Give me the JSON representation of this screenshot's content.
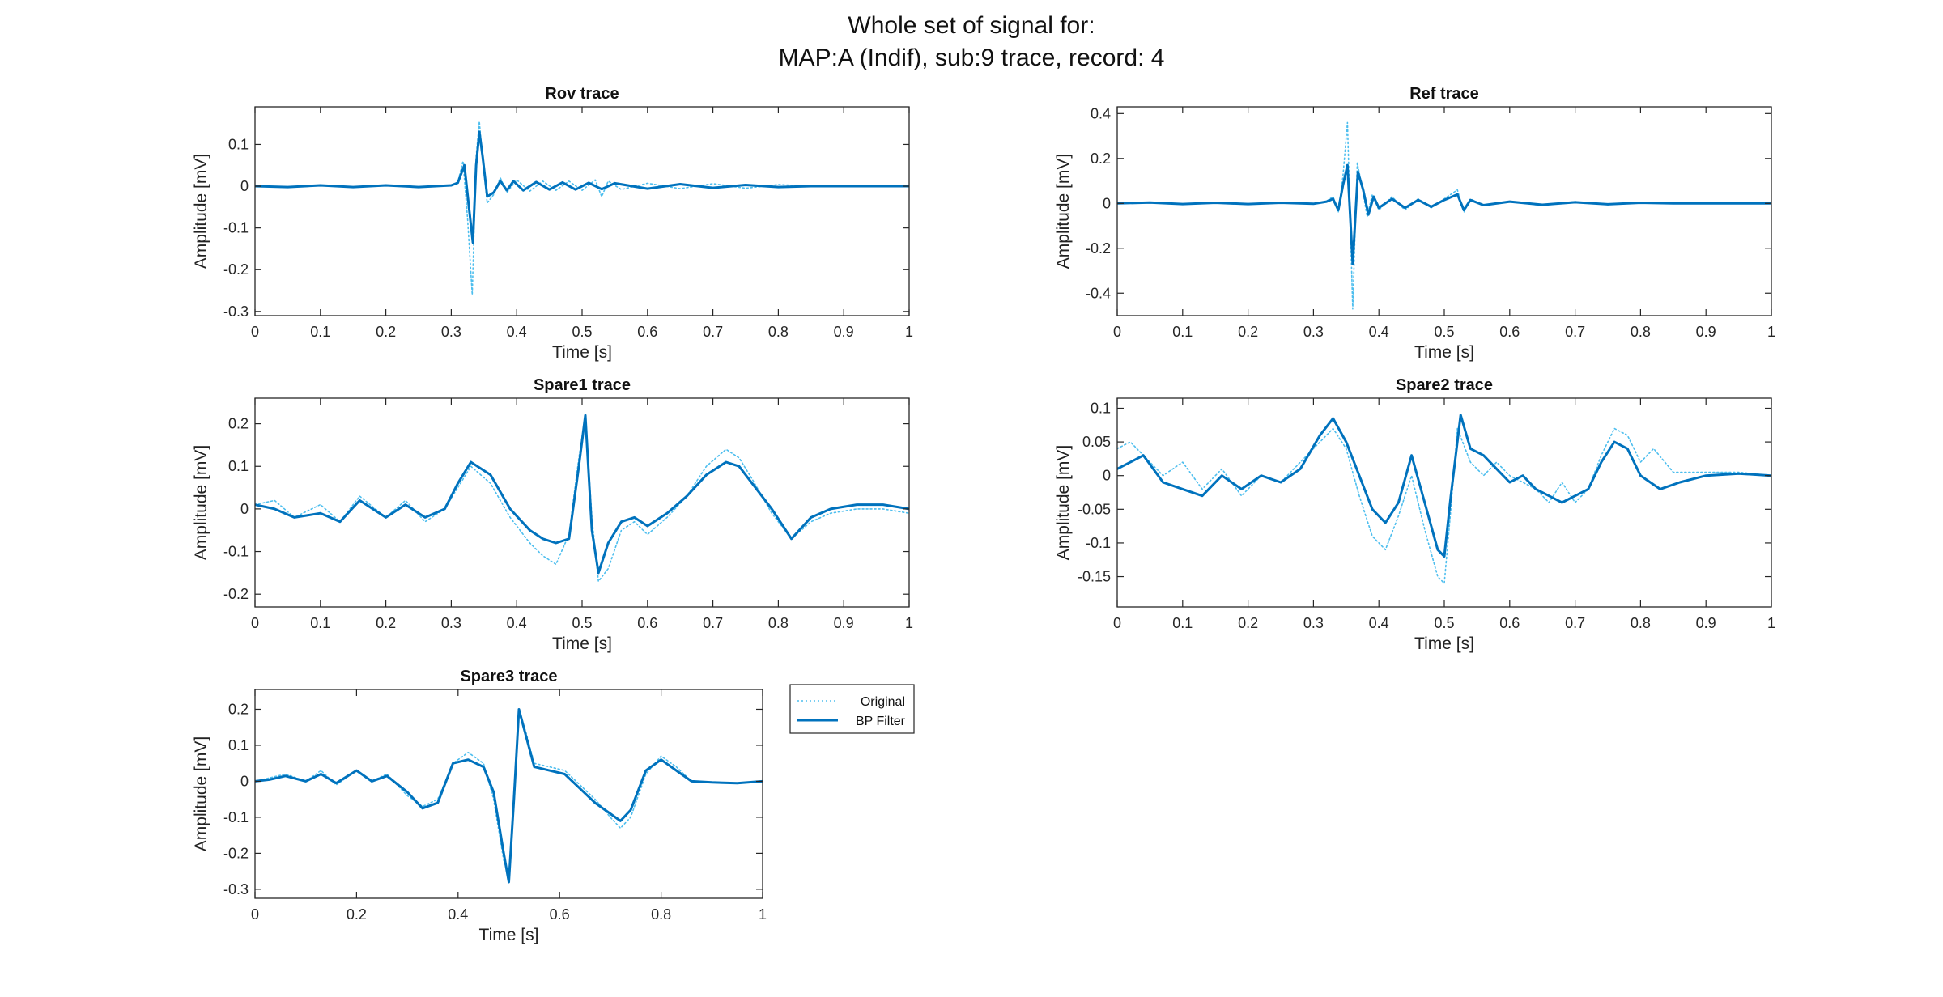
{
  "figure": {
    "title_line1": "Whole set of signal for:",
    "title_line2": "MAP:A (Indif), sub:9 trace, record: 4"
  },
  "colors": {
    "original": "#4DBEEE",
    "bp_filter": "#0072BD",
    "axes": "#262626"
  },
  "legend": {
    "items": [
      {
        "label": "Original",
        "style": "dotted"
      },
      {
        "label": "BP Filter",
        "style": "solid"
      }
    ]
  },
  "chart_data": [
    {
      "type": "line",
      "title": "Rov trace",
      "xlabel": "Time [s]",
      "ylabel": "Amplitude [mV]",
      "xlim": [
        0,
        1
      ],
      "ylim": [
        -0.31,
        0.19
      ],
      "xticks": [
        0,
        0.1,
        0.2,
        0.3,
        0.4,
        0.5,
        0.6,
        0.7,
        0.8,
        0.9,
        1
      ],
      "yticks": [
        -0.3,
        -0.2,
        -0.1,
        0,
        0.1
      ],
      "series": [
        {
          "name": "Original",
          "x": [
            0,
            0.05,
            0.1,
            0.15,
            0.2,
            0.25,
            0.3,
            0.31,
            0.318,
            0.325,
            0.332,
            0.338,
            0.343,
            0.348,
            0.355,
            0.365,
            0.375,
            0.385,
            0.4,
            0.42,
            0.44,
            0.46,
            0.48,
            0.5,
            0.52,
            0.53,
            0.54,
            0.56,
            0.6,
            0.65,
            0.7,
            0.75,
            0.8,
            0.85,
            0.9,
            0.95,
            1.0
          ],
          "y": [
            0,
            -0.003,
            0.002,
            -0.002,
            0.002,
            -0.002,
            0.002,
            0.01,
            0.06,
            -0.08,
            -0.26,
            0.07,
            0.155,
            0.06,
            -0.04,
            -0.02,
            0.02,
            -0.015,
            0.015,
            -0.012,
            0.012,
            -0.01,
            0.012,
            -0.01,
            0.015,
            -0.025,
            0.012,
            -0.008,
            0.007,
            -0.006,
            0.006,
            -0.005,
            0.004,
            0,
            0,
            0,
            0
          ]
        },
        {
          "name": "BP Filter",
          "x": [
            0,
            0.05,
            0.1,
            0.15,
            0.2,
            0.25,
            0.3,
            0.31,
            0.32,
            0.327,
            0.333,
            0.338,
            0.343,
            0.348,
            0.355,
            0.365,
            0.375,
            0.385,
            0.395,
            0.41,
            0.43,
            0.45,
            0.47,
            0.49,
            0.51,
            0.53,
            0.55,
            0.6,
            0.65,
            0.7,
            0.75,
            0.8,
            0.85,
            0.9,
            0.95,
            1.0
          ],
          "y": [
            0,
            -0.002,
            0.002,
            -0.002,
            0.002,
            -0.002,
            0.002,
            0.008,
            0.05,
            -0.05,
            -0.135,
            0.05,
            0.13,
            0.07,
            -0.025,
            -0.015,
            0.012,
            -0.01,
            0.012,
            -0.01,
            0.01,
            -0.008,
            0.009,
            -0.008,
            0.008,
            -0.007,
            0.007,
            -0.006,
            0.005,
            -0.004,
            0.003,
            -0.002,
            0,
            0,
            0,
            0
          ]
        }
      ]
    },
    {
      "type": "line",
      "title": "Ref trace",
      "xlabel": "Time [s]",
      "ylabel": "Amplitude [mV]",
      "xlim": [
        0,
        1
      ],
      "ylim": [
        -0.5,
        0.43
      ],
      "xticks": [
        0,
        0.1,
        0.2,
        0.3,
        0.4,
        0.5,
        0.6,
        0.7,
        0.8,
        0.9,
        1
      ],
      "yticks": [
        -0.4,
        -0.2,
        0,
        0.2,
        0.4
      ],
      "series": [
        {
          "name": "Original",
          "x": [
            0,
            0.05,
            0.1,
            0.15,
            0.2,
            0.25,
            0.3,
            0.32,
            0.33,
            0.338,
            0.345,
            0.352,
            0.36,
            0.367,
            0.374,
            0.382,
            0.39,
            0.4,
            0.42,
            0.44,
            0.46,
            0.48,
            0.5,
            0.52,
            0.53,
            0.54,
            0.56,
            0.6,
            0.65,
            0.7,
            0.75,
            0.8,
            0.85,
            0.9,
            0.95,
            1.0
          ],
          "y": [
            0,
            0.005,
            -0.003,
            0.004,
            -0.003,
            0.003,
            -0.003,
            0.01,
            0.03,
            -0.04,
            0.12,
            0.36,
            -0.47,
            0.18,
            0.08,
            -0.06,
            0.04,
            -0.03,
            0.03,
            -0.03,
            0.02,
            -0.02,
            0.02,
            0.06,
            -0.04,
            0.02,
            -0.01,
            0.01,
            -0.01,
            0.008,
            -0.006,
            0.004,
            0,
            0,
            0,
            0
          ]
        },
        {
          "name": "BP Filter",
          "x": [
            0,
            0.05,
            0.1,
            0.15,
            0.2,
            0.25,
            0.3,
            0.32,
            0.33,
            0.338,
            0.345,
            0.352,
            0.36,
            0.368,
            0.376,
            0.384,
            0.392,
            0.4,
            0.42,
            0.44,
            0.46,
            0.48,
            0.5,
            0.52,
            0.53,
            0.54,
            0.56,
            0.6,
            0.65,
            0.7,
            0.75,
            0.8,
            0.85,
            0.9,
            0.95,
            1.0
          ],
          "y": [
            0,
            0.004,
            -0.003,
            0.003,
            -0.003,
            0.003,
            -0.002,
            0.008,
            0.02,
            -0.03,
            0.08,
            0.17,
            -0.27,
            0.14,
            0.06,
            -0.05,
            0.03,
            -0.02,
            0.02,
            -0.02,
            0.015,
            -0.015,
            0.015,
            0.04,
            -0.03,
            0.015,
            -0.008,
            0.008,
            -0.006,
            0.005,
            -0.004,
            0.003,
            0,
            0,
            0,
            0
          ]
        }
      ]
    },
    {
      "type": "line",
      "title": "Spare1 trace",
      "xlabel": "Time [s]",
      "ylabel": "Amplitude [mV]",
      "xlim": [
        0,
        1
      ],
      "ylim": [
        -0.23,
        0.26
      ],
      "xticks": [
        0,
        0.1,
        0.2,
        0.3,
        0.4,
        0.5,
        0.6,
        0.7,
        0.8,
        0.9,
        1
      ],
      "yticks": [
        -0.2,
        -0.1,
        0,
        0.1,
        0.2
      ],
      "series": [
        {
          "name": "Original",
          "x": [
            0,
            0.03,
            0.06,
            0.1,
            0.13,
            0.16,
            0.2,
            0.23,
            0.26,
            0.29,
            0.31,
            0.33,
            0.36,
            0.39,
            0.42,
            0.44,
            0.46,
            0.48,
            0.495,
            0.505,
            0.515,
            0.525,
            0.54,
            0.56,
            0.58,
            0.6,
            0.63,
            0.66,
            0.69,
            0.72,
            0.74,
            0.76,
            0.79,
            0.82,
            0.85,
            0.88,
            0.92,
            0.96,
            1.0
          ],
          "y": [
            0.01,
            0.02,
            -0.02,
            0.01,
            -0.03,
            0.03,
            -0.02,
            0.02,
            -0.03,
            0.0,
            0.05,
            0.1,
            0.06,
            -0.02,
            -0.08,
            -0.11,
            -0.13,
            -0.06,
            0.12,
            0.22,
            -0.02,
            -0.17,
            -0.14,
            -0.05,
            -0.03,
            -0.06,
            -0.02,
            0.03,
            0.1,
            0.14,
            0.12,
            0.07,
            -0.01,
            -0.07,
            -0.03,
            -0.01,
            0.0,
            0.0,
            -0.01
          ]
        },
        {
          "name": "BP Filter",
          "x": [
            0,
            0.03,
            0.06,
            0.1,
            0.13,
            0.16,
            0.2,
            0.23,
            0.26,
            0.29,
            0.31,
            0.33,
            0.36,
            0.39,
            0.42,
            0.44,
            0.46,
            0.48,
            0.495,
            0.505,
            0.515,
            0.525,
            0.54,
            0.56,
            0.58,
            0.6,
            0.63,
            0.66,
            0.69,
            0.72,
            0.74,
            0.76,
            0.79,
            0.82,
            0.85,
            0.88,
            0.92,
            0.96,
            1.0
          ],
          "y": [
            0.01,
            0.0,
            -0.02,
            -0.01,
            -0.03,
            0.02,
            -0.02,
            0.01,
            -0.02,
            0.0,
            0.06,
            0.11,
            0.08,
            0.0,
            -0.05,
            -0.07,
            -0.08,
            -0.07,
            0.1,
            0.22,
            -0.05,
            -0.15,
            -0.08,
            -0.03,
            -0.02,
            -0.04,
            -0.01,
            0.03,
            0.08,
            0.11,
            0.1,
            0.06,
            0.0,
            -0.07,
            -0.02,
            0.0,
            0.01,
            0.01,
            0.0
          ]
        }
      ]
    },
    {
      "type": "line",
      "title": "Spare2 trace",
      "xlabel": "Time [s]",
      "ylabel": "Amplitude [mV]",
      "xlim": [
        0,
        1
      ],
      "ylim": [
        -0.195,
        0.115
      ],
      "xticks": [
        0,
        0.1,
        0.2,
        0.3,
        0.4,
        0.5,
        0.6,
        0.7,
        0.8,
        0.9,
        1
      ],
      "yticks": [
        -0.15,
        -0.1,
        -0.05,
        0,
        0.05,
        0.1
      ],
      "series": [
        {
          "name": "Original",
          "x": [
            0,
            0.02,
            0.04,
            0.07,
            0.1,
            0.13,
            0.16,
            0.19,
            0.22,
            0.25,
            0.28,
            0.31,
            0.33,
            0.35,
            0.37,
            0.39,
            0.41,
            0.43,
            0.45,
            0.47,
            0.49,
            0.5,
            0.51,
            0.52,
            0.54,
            0.56,
            0.58,
            0.6,
            0.62,
            0.64,
            0.66,
            0.68,
            0.7,
            0.72,
            0.74,
            0.76,
            0.78,
            0.8,
            0.82,
            0.85,
            0.9,
            0.95,
            1.0
          ],
          "y": [
            0.04,
            0.05,
            0.03,
            0.0,
            0.02,
            -0.02,
            0.01,
            -0.03,
            0.0,
            -0.01,
            0.02,
            0.05,
            0.07,
            0.04,
            -0.03,
            -0.09,
            -0.11,
            -0.06,
            0.0,
            -0.08,
            -0.15,
            -0.16,
            -0.05,
            0.07,
            0.02,
            0.0,
            0.02,
            0.0,
            -0.01,
            -0.02,
            -0.04,
            -0.01,
            -0.04,
            -0.02,
            0.03,
            0.07,
            0.06,
            0.02,
            0.04,
            0.005,
            0.005,
            0.005,
            0.0
          ]
        },
        {
          "name": "BP Filter",
          "x": [
            0,
            0.02,
            0.04,
            0.07,
            0.1,
            0.13,
            0.16,
            0.19,
            0.22,
            0.25,
            0.28,
            0.31,
            0.33,
            0.35,
            0.37,
            0.39,
            0.41,
            0.43,
            0.45,
            0.47,
            0.49,
            0.5,
            0.51,
            0.525,
            0.54,
            0.56,
            0.58,
            0.6,
            0.62,
            0.64,
            0.66,
            0.68,
            0.7,
            0.72,
            0.74,
            0.76,
            0.78,
            0.8,
            0.83,
            0.86,
            0.9,
            0.95,
            1.0
          ],
          "y": [
            0.01,
            0.02,
            0.03,
            -0.01,
            -0.02,
            -0.03,
            0.0,
            -0.02,
            0.0,
            -0.01,
            0.01,
            0.06,
            0.085,
            0.05,
            0.0,
            -0.05,
            -0.07,
            -0.04,
            0.03,
            -0.04,
            -0.11,
            -0.12,
            -0.03,
            0.09,
            0.04,
            0.03,
            0.01,
            -0.01,
            0.0,
            -0.02,
            -0.03,
            -0.04,
            -0.03,
            -0.02,
            0.02,
            0.05,
            0.04,
            0.0,
            -0.02,
            -0.01,
            0.0,
            0.003,
            0.0
          ]
        }
      ]
    },
    {
      "type": "line",
      "title": "Spare3 trace",
      "xlabel": "Time [s]",
      "ylabel": "Amplitude [mV]",
      "xlim": [
        0,
        1
      ],
      "ylim": [
        -0.325,
        0.255
      ],
      "xticks": [
        0,
        0.2,
        0.4,
        0.6,
        0.8,
        1
      ],
      "yticks": [
        -0.3,
        -0.2,
        -0.1,
        0,
        0.1,
        0.2
      ],
      "series": [
        {
          "name": "Original",
          "x": [
            0,
            0.03,
            0.06,
            0.1,
            0.13,
            0.16,
            0.2,
            0.23,
            0.26,
            0.3,
            0.33,
            0.36,
            0.39,
            0.42,
            0.45,
            0.47,
            0.49,
            0.5,
            0.51,
            0.52,
            0.535,
            0.55,
            0.58,
            0.61,
            0.64,
            0.67,
            0.7,
            0.72,
            0.74,
            0.77,
            0.8,
            0.83,
            0.86,
            0.9,
            0.95,
            1.0
          ],
          "y": [
            0,
            0.01,
            0.02,
            0.0,
            0.03,
            -0.01,
            0.03,
            0.0,
            0.02,
            -0.04,
            -0.07,
            -0.05,
            0.05,
            0.08,
            0.05,
            -0.05,
            -0.22,
            -0.26,
            -0.05,
            0.2,
            0.13,
            0.05,
            0.04,
            0.03,
            -0.01,
            -0.05,
            -0.1,
            -0.13,
            -0.1,
            0.02,
            0.07,
            0.04,
            0.0,
            -0.003,
            -0.005,
            0.0
          ]
        },
        {
          "name": "BP Filter",
          "x": [
            0,
            0.03,
            0.06,
            0.1,
            0.13,
            0.16,
            0.2,
            0.23,
            0.26,
            0.3,
            0.33,
            0.36,
            0.39,
            0.42,
            0.45,
            0.47,
            0.49,
            0.5,
            0.51,
            0.52,
            0.535,
            0.55,
            0.58,
            0.61,
            0.64,
            0.67,
            0.7,
            0.72,
            0.74,
            0.77,
            0.8,
            0.83,
            0.86,
            0.9,
            0.95,
            1.0
          ],
          "y": [
            0,
            0.005,
            0.015,
            0.0,
            0.02,
            -0.005,
            0.03,
            0.0,
            0.015,
            -0.03,
            -0.075,
            -0.06,
            0.05,
            0.06,
            0.04,
            -0.03,
            -0.2,
            -0.28,
            -0.05,
            0.2,
            0.12,
            0.04,
            0.03,
            0.02,
            -0.02,
            -0.06,
            -0.09,
            -0.11,
            -0.08,
            0.03,
            0.06,
            0.03,
            0.0,
            -0.003,
            -0.005,
            0.0
          ]
        }
      ]
    }
  ]
}
